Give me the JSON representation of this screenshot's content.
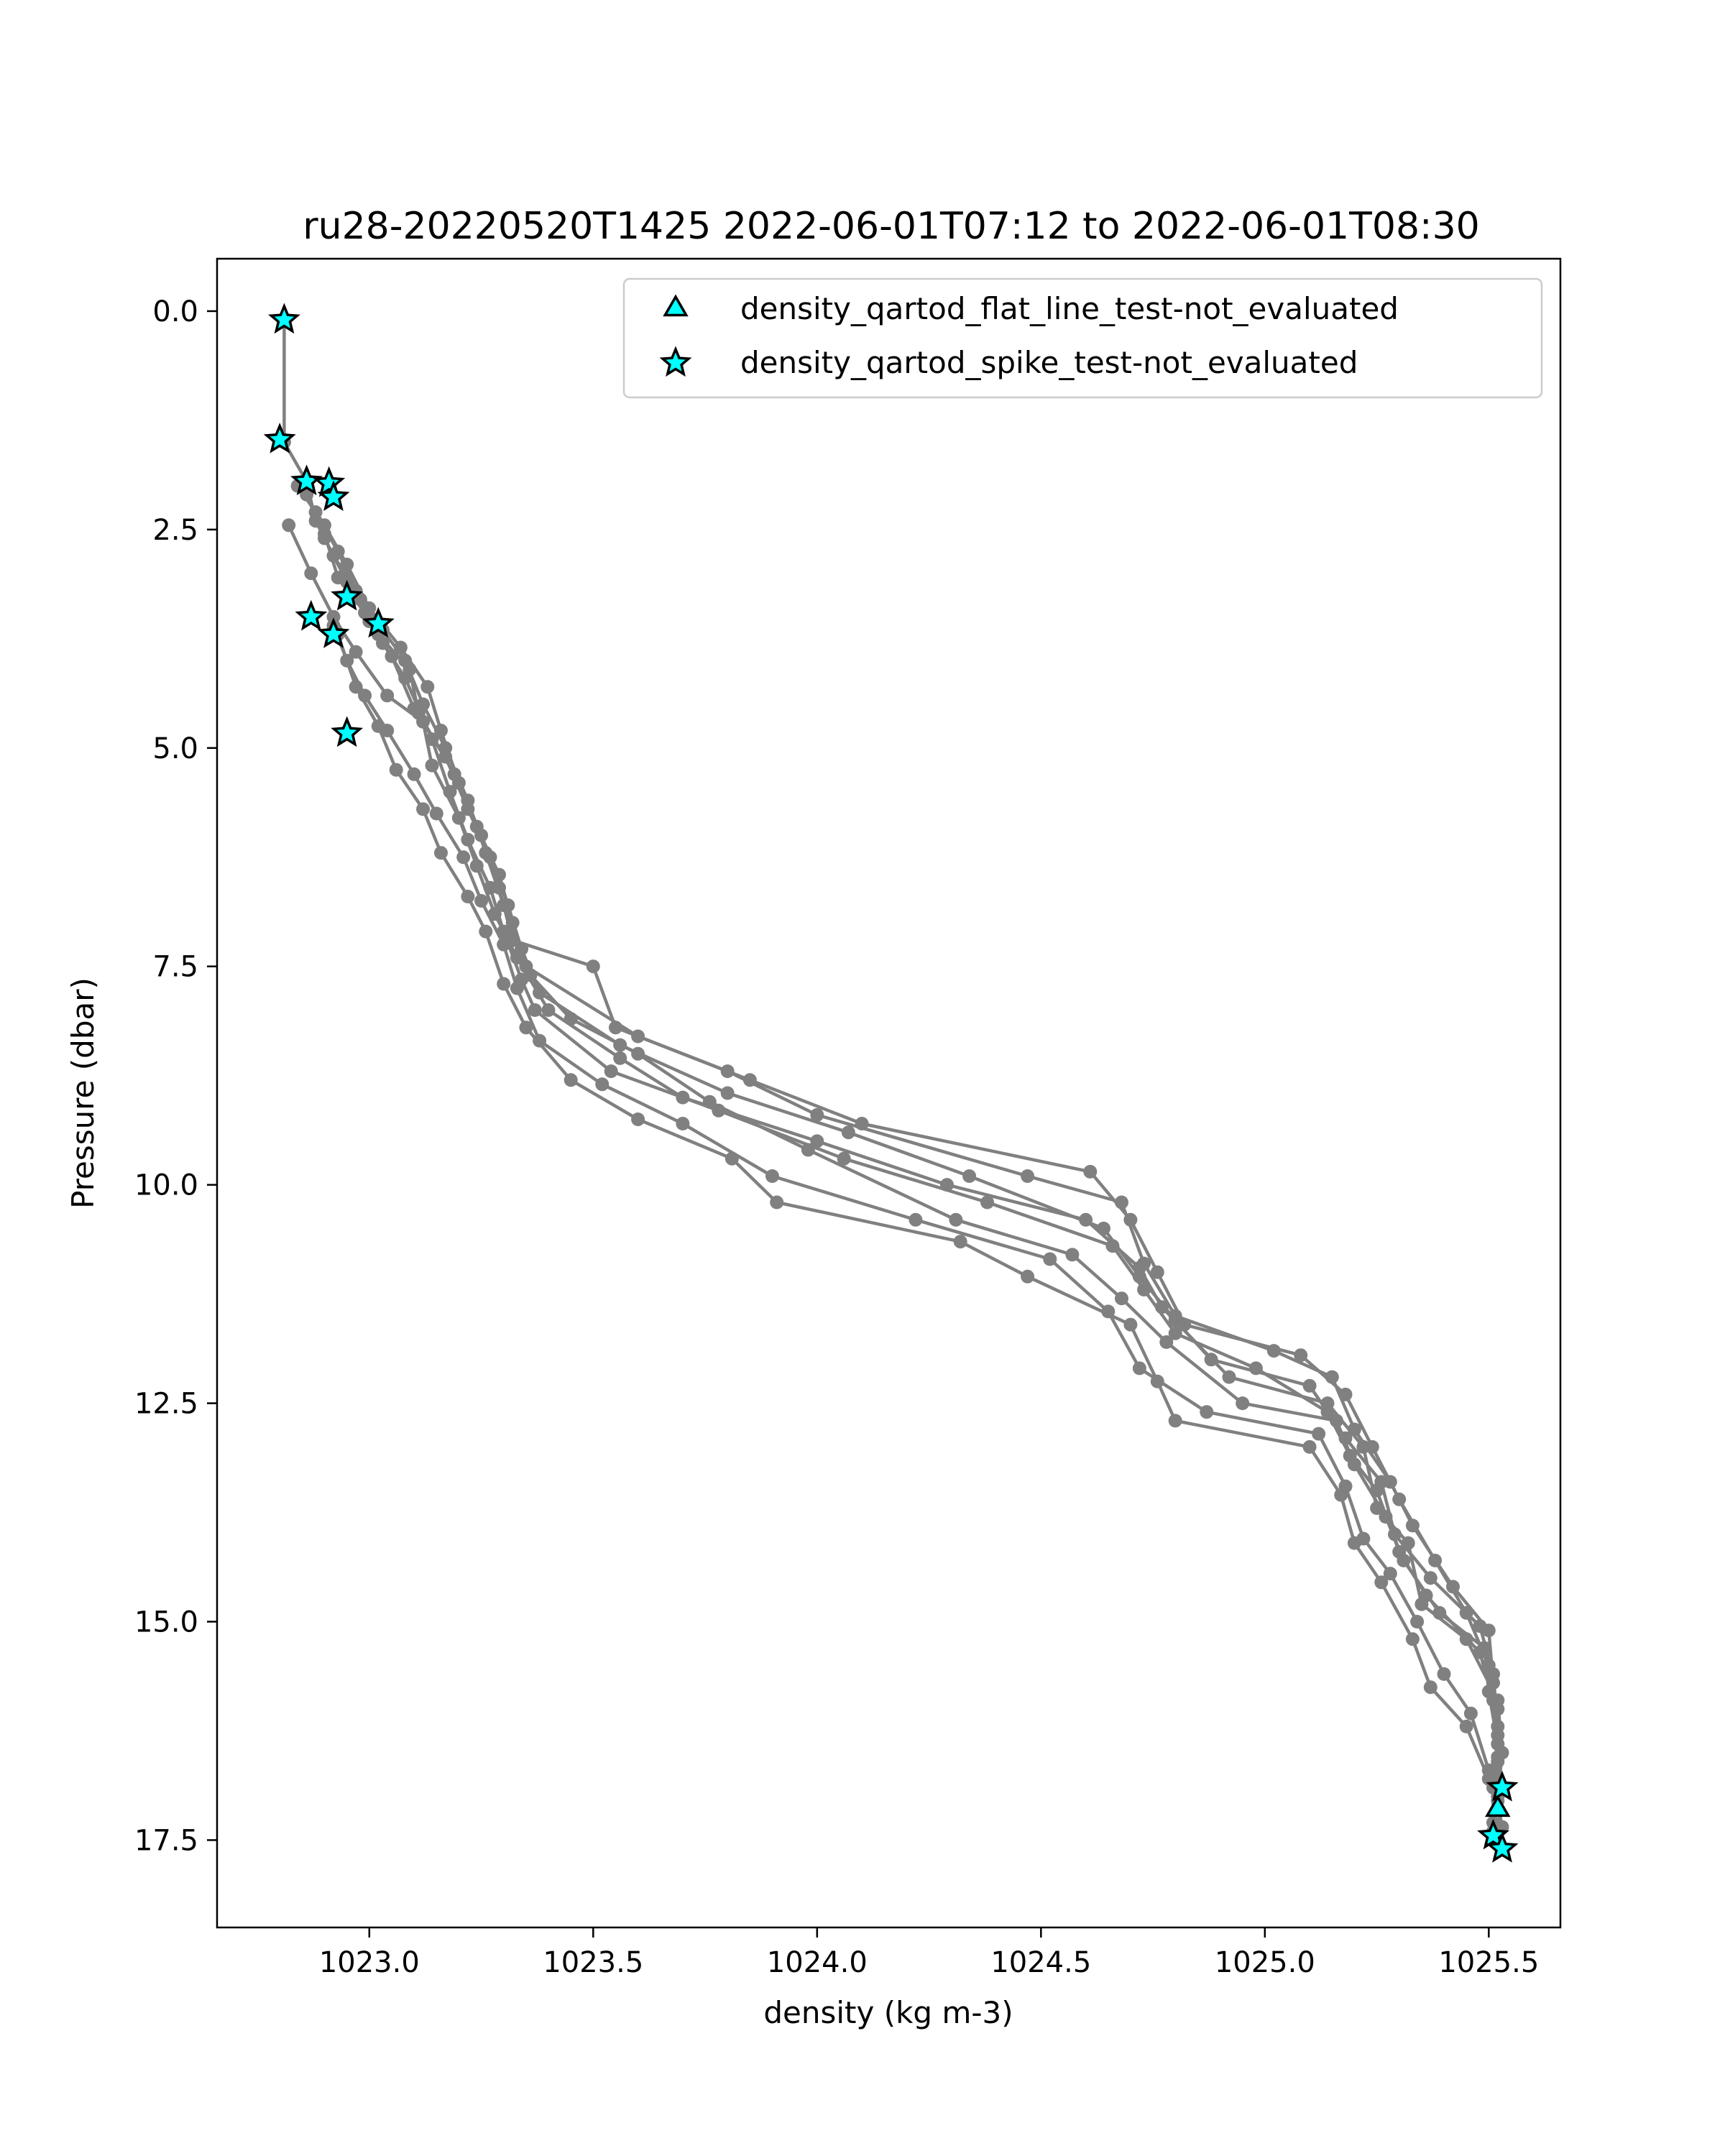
{
  "chart_data": {
    "type": "line",
    "title": "ru28-20220520T1425 2022-06-01T07:12 to 2022-06-01T08:30",
    "xlabel": "density (kg m-3)",
    "ylabel": "Pressure (dbar)",
    "xlim": [
      1022.66,
      1025.66
    ],
    "ylim": [
      18.5,
      -0.6
    ],
    "y_inverted": true,
    "grid": false,
    "xticks": [
      1023.0,
      1023.5,
      1024.0,
      1024.5,
      1025.0,
      1025.5
    ],
    "xtick_labels": [
      "1023.0",
      "1023.5",
      "1024.0",
      "1024.5",
      "1025.0",
      "1025.5"
    ],
    "yticks": [
      0.0,
      2.5,
      5.0,
      7.5,
      10.0,
      12.5,
      15.0,
      17.5
    ],
    "ytick_labels": [
      "0.0",
      "2.5",
      "5.0",
      "7.5",
      "10.0",
      "12.5",
      "15.0",
      "17.5"
    ],
    "line_color": "#808080",
    "marker_color": "#00ffff",
    "legend_placement": "top-right",
    "legend": [
      {
        "label": "density_qartod_flat_line_test-not_evaluated",
        "marker": "triangle"
      },
      {
        "label": "density_qartod_spike_test-not_evaluated",
        "marker": "star"
      }
    ],
    "profiles": [
      [
        [
          1022.81,
          0.1
        ],
        [
          1022.81,
          1.5
        ],
        [
          1022.86,
          1.95
        ],
        [
          1022.88,
          2.4
        ],
        [
          1022.92,
          2.8
        ],
        [
          1022.97,
          3.2
        ],
        [
          1023.03,
          3.65
        ],
        [
          1023.08,
          4.0
        ],
        [
          1023.12,
          4.5
        ],
        [
          1023.17,
          5.0
        ],
        [
          1023.22,
          5.6
        ],
        [
          1023.26,
          6.2
        ],
        [
          1023.3,
          6.8
        ],
        [
          1023.35,
          7.5
        ],
        [
          1023.6,
          8.3
        ],
        [
          1023.85,
          8.8
        ],
        [
          1024.1,
          9.3
        ],
        [
          1024.61,
          9.85
        ],
        [
          1024.7,
          10.4
        ],
        [
          1024.76,
          11.0
        ],
        [
          1024.82,
          11.6
        ],
        [
          1025.08,
          11.95
        ],
        [
          1025.18,
          12.4
        ],
        [
          1025.24,
          13.0
        ],
        [
          1025.3,
          13.6
        ],
        [
          1025.38,
          14.3
        ],
        [
          1025.45,
          14.9
        ],
        [
          1025.5,
          15.5
        ],
        [
          1025.52,
          16.0
        ],
        [
          1025.52,
          16.6
        ],
        [
          1025.53,
          16.9
        ],
        [
          1025.52,
          17.15
        ]
      ],
      [
        [
          1022.84,
          2.0
        ],
        [
          1022.9,
          2.45
        ],
        [
          1022.95,
          2.9
        ],
        [
          1023.0,
          3.4
        ],
        [
          1023.07,
          3.85
        ],
        [
          1023.13,
          4.3
        ],
        [
          1023.16,
          4.8
        ],
        [
          1023.2,
          5.4
        ],
        [
          1023.25,
          6.0
        ],
        [
          1023.29,
          6.6
        ],
        [
          1023.32,
          7.2
        ],
        [
          1023.5,
          7.5
        ],
        [
          1023.55,
          8.2
        ],
        [
          1023.8,
          8.7
        ],
        [
          1024.0,
          9.2
        ],
        [
          1024.47,
          9.9
        ],
        [
          1024.68,
          10.2
        ],
        [
          1024.73,
          10.9
        ],
        [
          1024.8,
          11.5
        ],
        [
          1025.02,
          11.9
        ],
        [
          1025.15,
          12.2
        ],
        [
          1025.2,
          12.8
        ],
        [
          1025.28,
          13.4
        ],
        [
          1025.33,
          13.9
        ],
        [
          1025.42,
          14.6
        ],
        [
          1025.5,
          15.1
        ],
        [
          1025.51,
          15.7
        ],
        [
          1025.52,
          16.3
        ],
        [
          1025.51,
          16.9
        ],
        [
          1025.51,
          17.4
        ]
      ],
      [
        [
          1022.82,
          2.45
        ],
        [
          1022.87,
          3.0
        ],
        [
          1022.92,
          3.5
        ],
        [
          1022.97,
          3.9
        ],
        [
          1023.04,
          4.4
        ],
        [
          1023.12,
          4.7
        ],
        [
          1023.14,
          5.2
        ],
        [
          1023.2,
          5.8
        ],
        [
          1023.24,
          6.35
        ],
        [
          1023.28,
          6.9
        ],
        [
          1023.33,
          7.4
        ],
        [
          1023.4,
          8.0
        ],
        [
          1023.56,
          8.55
        ],
        [
          1023.7,
          9.0
        ],
        [
          1024.0,
          9.5
        ],
        [
          1024.29,
          10.0
        ],
        [
          1024.6,
          10.4
        ],
        [
          1024.72,
          10.95
        ],
        [
          1024.77,
          11.4
        ],
        [
          1024.92,
          12.2
        ],
        [
          1025.14,
          12.5
        ],
        [
          1025.22,
          13.0
        ],
        [
          1025.25,
          13.7
        ],
        [
          1025.32,
          14.1
        ],
        [
          1025.35,
          14.8
        ],
        [
          1025.45,
          15.2
        ],
        [
          1025.52,
          15.9
        ],
        [
          1025.53,
          16.5
        ],
        [
          1025.52,
          17.0
        ],
        [
          1025.53,
          17.6
        ]
      ],
      [
        [
          1022.86,
          2.1
        ],
        [
          1022.9,
          2.6
        ],
        [
          1022.95,
          3.1
        ],
        [
          1023.0,
          3.55
        ],
        [
          1023.05,
          3.95
        ],
        [
          1023.1,
          4.55
        ],
        [
          1023.17,
          5.1
        ],
        [
          1023.22,
          5.7
        ],
        [
          1023.27,
          6.25
        ],
        [
          1023.31,
          6.8
        ],
        [
          1023.34,
          7.3
        ],
        [
          1023.38,
          7.8
        ],
        [
          1023.56,
          8.4
        ],
        [
          1023.8,
          8.95
        ],
        [
          1024.07,
          9.4
        ],
        [
          1024.34,
          9.9
        ],
        [
          1024.64,
          10.5
        ],
        [
          1024.72,
          11.05
        ],
        [
          1024.8,
          11.55
        ],
        [
          1024.88,
          12.0
        ],
        [
          1025.1,
          12.3
        ],
        [
          1025.18,
          12.9
        ],
        [
          1025.26,
          13.4
        ],
        [
          1025.29,
          14.0
        ],
        [
          1025.37,
          14.5
        ],
        [
          1025.48,
          15.05
        ],
        [
          1025.51,
          15.6
        ],
        [
          1025.52,
          16.2
        ],
        [
          1025.52,
          16.85
        ],
        [
          1025.51,
          17.3
        ]
      ],
      [
        [
          1022.88,
          2.3
        ],
        [
          1022.93,
          2.75
        ],
        [
          1022.98,
          3.3
        ],
        [
          1023.02,
          3.7
        ],
        [
          1023.09,
          4.1
        ],
        [
          1023.11,
          4.6
        ],
        [
          1023.19,
          5.3
        ],
        [
          1023.24,
          5.9
        ],
        [
          1023.29,
          6.45
        ],
        [
          1023.32,
          7.0
        ],
        [
          1023.36,
          7.6
        ],
        [
          1023.45,
          8.1
        ],
        [
          1023.6,
          8.5
        ],
        [
          1023.76,
          9.05
        ],
        [
          1023.98,
          9.6
        ],
        [
          1024.31,
          10.4
        ],
        [
          1024.57,
          10.8
        ],
        [
          1024.68,
          11.3
        ],
        [
          1024.78,
          11.8
        ],
        [
          1024.95,
          12.5
        ],
        [
          1025.16,
          12.7
        ],
        [
          1025.2,
          13.2
        ],
        [
          1025.27,
          13.8
        ],
        [
          1025.31,
          14.3
        ],
        [
          1025.39,
          14.9
        ],
        [
          1025.49,
          15.3
        ],
        [
          1025.5,
          15.8
        ],
        [
          1025.52,
          16.4
        ],
        [
          1025.51,
          16.8
        ],
        [
          1025.53,
          17.35
        ]
      ],
      [
        [
          1022.9,
          2.55
        ],
        [
          1022.93,
          3.05
        ],
        [
          1022.99,
          3.45
        ],
        [
          1023.03,
          3.8
        ],
        [
          1023.08,
          4.2
        ],
        [
          1023.14,
          4.9
        ],
        [
          1023.18,
          5.5
        ],
        [
          1023.22,
          6.05
        ],
        [
          1023.27,
          6.6
        ],
        [
          1023.3,
          7.1
        ],
        [
          1023.34,
          7.65
        ],
        [
          1023.37,
          8.0
        ],
        [
          1023.54,
          8.7
        ],
        [
          1023.78,
          9.15
        ],
        [
          1024.06,
          9.7
        ],
        [
          1024.38,
          10.2
        ],
        [
          1024.66,
          10.7
        ],
        [
          1024.73,
          11.2
        ],
        [
          1024.8,
          11.7
        ],
        [
          1024.98,
          12.1
        ],
        [
          1025.14,
          12.6
        ],
        [
          1025.19,
          13.1
        ],
        [
          1025.25,
          13.5
        ],
        [
          1025.3,
          14.2
        ],
        [
          1025.36,
          14.7
        ],
        [
          1025.48,
          15.35
        ],
        [
          1025.51,
          15.9
        ],
        [
          1025.52,
          16.55
        ],
        [
          1025.52,
          17.05
        ]
      ],
      [
        [
          1022.92,
          3.6
        ],
        [
          1022.95,
          4.0
        ],
        [
          1022.99,
          4.4
        ],
        [
          1023.04,
          4.8
        ],
        [
          1023.1,
          5.3
        ],
        [
          1023.15,
          5.75
        ],
        [
          1023.21,
          6.25
        ],
        [
          1023.25,
          6.75
        ],
        [
          1023.3,
          7.25
        ],
        [
          1023.33,
          7.75
        ],
        [
          1023.38,
          8.35
        ],
        [
          1023.52,
          8.85
        ],
        [
          1023.7,
          9.3
        ],
        [
          1023.9,
          9.9
        ],
        [
          1024.22,
          10.4
        ],
        [
          1024.52,
          10.85
        ],
        [
          1024.65,
          11.45
        ],
        [
          1024.72,
          12.1
        ],
        [
          1024.87,
          12.6
        ],
        [
          1025.12,
          12.85
        ],
        [
          1025.18,
          13.45
        ],
        [
          1025.22,
          14.05
        ],
        [
          1025.28,
          14.45
        ],
        [
          1025.34,
          15.0
        ],
        [
          1025.4,
          15.6
        ],
        [
          1025.46,
          16.05
        ],
        [
          1025.5,
          16.7
        ]
      ],
      [
        [
          1022.93,
          3.7
        ],
        [
          1022.97,
          4.3
        ],
        [
          1023.02,
          4.75
        ],
        [
          1023.06,
          5.25
        ],
        [
          1023.12,
          5.7
        ],
        [
          1023.16,
          6.2
        ],
        [
          1023.22,
          6.7
        ],
        [
          1023.26,
          7.1
        ],
        [
          1023.3,
          7.7
        ],
        [
          1023.35,
          8.2
        ],
        [
          1023.45,
          8.8
        ],
        [
          1023.6,
          9.25
        ],
        [
          1023.81,
          9.7
        ],
        [
          1023.91,
          10.2
        ],
        [
          1024.32,
          10.65
        ],
        [
          1024.47,
          11.05
        ],
        [
          1024.7,
          11.6
        ],
        [
          1024.76,
          12.25
        ],
        [
          1024.8,
          12.7
        ],
        [
          1025.1,
          13.0
        ],
        [
          1025.17,
          13.55
        ],
        [
          1025.2,
          14.1
        ],
        [
          1025.26,
          14.55
        ],
        [
          1025.33,
          15.2
        ],
        [
          1025.37,
          15.75
        ],
        [
          1025.45,
          16.2
        ],
        [
          1025.5,
          16.8
        ]
      ]
    ],
    "spike_not_evaluated_points": [
      [
        1022.81,
        0.1
      ],
      [
        1022.8,
        1.47
      ],
      [
        1022.86,
        1.95
      ],
      [
        1022.91,
        1.97
      ],
      [
        1022.92,
        2.13
      ],
      [
        1022.95,
        3.27
      ],
      [
        1022.87,
        3.5
      ],
      [
        1022.92,
        3.7
      ],
      [
        1023.02,
        3.58
      ],
      [
        1022.95,
        4.83
      ],
      [
        1025.53,
        16.9
      ],
      [
        1025.51,
        17.45
      ],
      [
        1025.53,
        17.6
      ]
    ],
    "flat_line_not_evaluated_points": [
      [
        1025.52,
        17.15
      ]
    ]
  }
}
